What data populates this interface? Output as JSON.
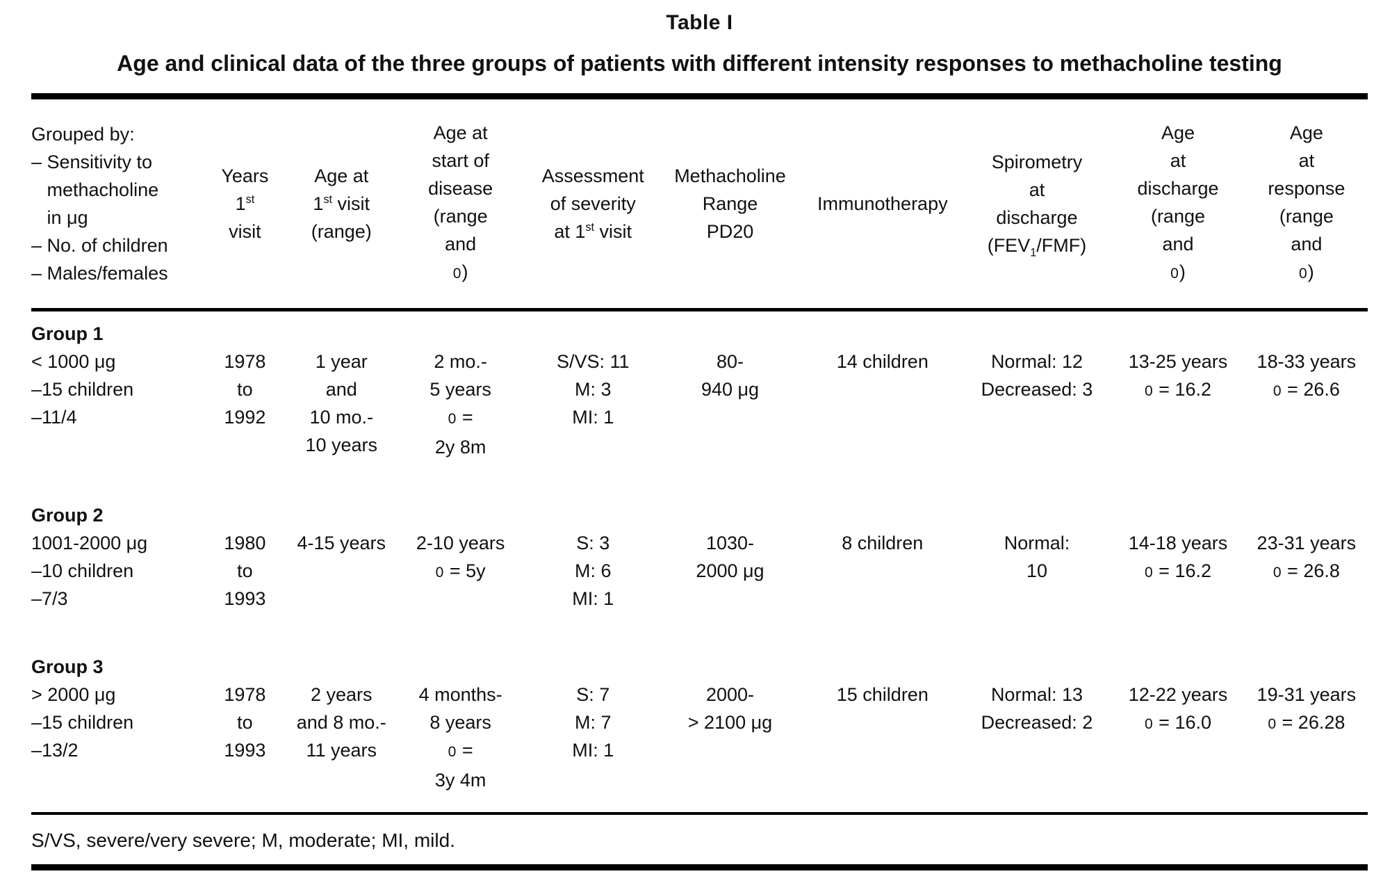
{
  "page": {
    "label": "Table I",
    "caption": "Age and clinical data of the three groups of patients with different intensity responses to methacholine testing",
    "footnote": "S/VS, severe/very severe; M, moderate; MI, mild.",
    "text_color": "#111111",
    "rule_color": "#000000",
    "background_color": "#ffffff"
  },
  "table": {
    "columns": [
      {
        "id": "grouped-by",
        "align": "left",
        "header_lines": [
          "Grouped by:",
          "– Sensitivity to",
          "   methacholine",
          "   in μg",
          "– No. of children",
          "– Males/females"
        ]
      },
      {
        "id": "years-first-visit",
        "align": "center",
        "header_lines": [
          "Years",
          "1^{st}",
          "visit"
        ]
      },
      {
        "id": "age-first-visit",
        "align": "center",
        "header_lines": [
          "Age at",
          "1^{st} visit",
          "(range)"
        ]
      },
      {
        "id": "age-start-disease",
        "align": "center",
        "header_lines": [
          "Age at",
          "start of",
          "disease",
          "(range",
          "and",
          "0)"
        ]
      },
      {
        "id": "severity",
        "align": "center",
        "header_lines": [
          "Assessment",
          "of severity",
          "at 1^{st} visit"
        ]
      },
      {
        "id": "methacholine-range",
        "align": "center",
        "header_lines": [
          "Methacholine",
          "Range",
          "PD20"
        ]
      },
      {
        "id": "immunotherapy",
        "align": "center",
        "header_lines": [
          "Immunotherapy"
        ]
      },
      {
        "id": "spirometry",
        "align": "center",
        "header_lines": [
          "Spirometry",
          "at",
          "discharge",
          "(FEV_{1}/FMF)"
        ]
      },
      {
        "id": "age-discharge",
        "align": "center",
        "header_lines": [
          "Age",
          "at",
          "discharge",
          "(range",
          "and",
          "0)"
        ]
      },
      {
        "id": "age-response",
        "align": "center",
        "header_lines": [
          "Age",
          "at",
          "response",
          "(range",
          "and",
          "0)"
        ]
      }
    ],
    "groups": [
      {
        "id": "group-1",
        "cells": [
          [
            "**Group 1**",
            "< 1000 μg",
            "–15 children",
            "–11/4"
          ],
          [
            "1978",
            "to",
            "1992"
          ],
          [
            "1 year",
            "and",
            "10 mo.-",
            "10 years"
          ],
          [
            "2 mo.-",
            "5 years",
            "0 =",
            "2y 8m"
          ],
          [
            "S/VS: 11",
            "M: 3",
            "MI: 1"
          ],
          [
            "80-",
            "940 μg"
          ],
          [
            "14 children"
          ],
          [
            "Normal: 12",
            "Decreased: 3"
          ],
          [
            "13-25 years",
            "0 = 16.2"
          ],
          [
            "18-33 years",
            "0 = 26.6"
          ]
        ]
      },
      {
        "id": "group-2",
        "cells": [
          [
            "**Group 2**",
            "1001-2000 μg",
            "–10 children",
            "–7/3"
          ],
          [
            "1980",
            "to",
            "1993"
          ],
          [
            "4-15 years"
          ],
          [
            "2-10 years",
            "0 = 5y"
          ],
          [
            "S: 3",
            "M: 6",
            "MI: 1"
          ],
          [
            "1030-",
            "2000 μg"
          ],
          [
            "8 children"
          ],
          [
            "Normal:",
            "10"
          ],
          [
            "14-18 years",
            "0 = 16.2"
          ],
          [
            "23-31 years",
            "0 = 26.8"
          ]
        ]
      },
      {
        "id": "group-3",
        "cells": [
          [
            "**Group 3**",
            "> 2000 μg",
            "–15 children",
            "–13/2"
          ],
          [
            "1978",
            "to",
            "1993"
          ],
          [
            "2 years",
            "and 8 mo.-",
            "11 years"
          ],
          [
            "4 months-",
            "8 years",
            "0 =",
            "3y 4m"
          ],
          [
            "S: 7",
            "M: 7",
            "MI: 1"
          ],
          [
            "2000-",
            "> 2100 μg"
          ],
          [
            "15 children"
          ],
          [
            "Normal: 13",
            "Decreased: 2"
          ],
          [
            "12-22 years",
            "0 = 16.0"
          ],
          [
            "19-31 years",
            "0 = 26.28"
          ]
        ]
      }
    ]
  }
}
